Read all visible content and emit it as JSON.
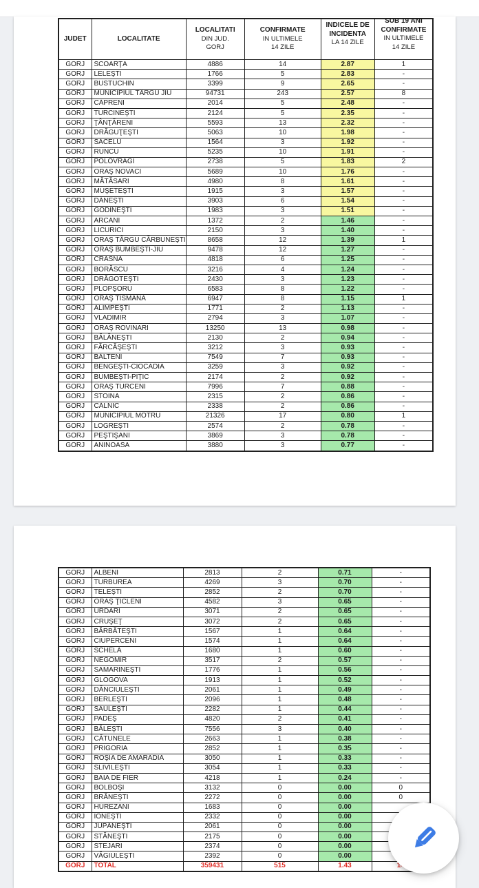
{
  "viewer": {
    "fab": {
      "icon": "pencil-edit-icon",
      "color": "#3d7ce5"
    }
  },
  "colors": {
    "band_yellow": "#f8f7a0",
    "band_green": "#a6e9ab",
    "total_red": "#e02d26",
    "viewer_background": "#eef0f3"
  },
  "table": {
    "judet_value": "GORJ",
    "columns": [
      {
        "id": "judet",
        "strong": [
          "JUDET"
        ],
        "normal": [],
        "raised": false
      },
      {
        "id": "localitate",
        "strong": [
          "LOCALITATE"
        ],
        "normal": [],
        "raised": false
      },
      {
        "id": "localitati-din-jud",
        "strong": [
          "LOCALITATI"
        ],
        "normal": [
          "DIN JUD.",
          "GORJ"
        ],
        "raised": false
      },
      {
        "id": "confirmate",
        "strong": [
          "CONFIRMATE"
        ],
        "normal": [
          "IN ULTIMELE",
          "14 ZILE"
        ],
        "raised": false
      },
      {
        "id": "incidenta",
        "strong": [
          "INDICELE DE",
          "INCIDENTA"
        ],
        "normal": [
          "LA 14 ZILE"
        ],
        "raised": true
      },
      {
        "id": "sub19",
        "strong": [
          "SUB 19 ANI",
          "CONFIRMATE"
        ],
        "normal": [
          "IN ULTIMELE",
          "14 ZILE"
        ],
        "raised": true
      }
    ],
    "row_fields": [
      "localitate",
      "localitati_din_jud",
      "confirmate_14_zile",
      "indice_incidenta_14_zile",
      "sub19_confirmate",
      "band"
    ]
  },
  "pages": [
    {
      "rows": [
        [
          "SCOARŢA",
          "4886",
          "14",
          "2.87",
          "1",
          "Y"
        ],
        [
          "LELEŞTI",
          "1766",
          "5",
          "2.83",
          "-",
          "Y"
        ],
        [
          "BUSTUCHIN",
          "3399",
          "9",
          "2.65",
          "-",
          "Y"
        ],
        [
          "MUNICIPIUL TÂRGU JIU",
          "94731",
          "243",
          "2.57",
          "8",
          "Y"
        ],
        [
          "CĂPRENI",
          "2014",
          "5",
          "2.48",
          "-",
          "Y"
        ],
        [
          "TURCINEŞTI",
          "2124",
          "5",
          "2.35",
          "-",
          "Y"
        ],
        [
          "ŢÂNŢĂRENI",
          "5593",
          "13",
          "2.32",
          "-",
          "Y"
        ],
        [
          "DRĂGUŢEŞTI",
          "5063",
          "10",
          "1.98",
          "-",
          "Y"
        ],
        [
          "SĂCELU",
          "1564",
          "3",
          "1.92",
          "-",
          "Y"
        ],
        [
          "RUNCU",
          "5235",
          "10",
          "1.91",
          "-",
          "Y"
        ],
        [
          "POLOVRAGI",
          "2738",
          "5",
          "1.83",
          "2",
          "Y"
        ],
        [
          "ORAŞ NOVACI",
          "5689",
          "10",
          "1.76",
          "-",
          "Y"
        ],
        [
          "MĂTĂSARI",
          "4980",
          "8",
          "1.61",
          "-",
          "Y"
        ],
        [
          "MUŞETEŞTI",
          "1915",
          "3",
          "1.57",
          "-",
          "Y"
        ],
        [
          "DĂNEŞTI",
          "3903",
          "6",
          "1.54",
          "-",
          "Y"
        ],
        [
          "GODINEŞTI",
          "1983",
          "3",
          "1.51",
          "-",
          "Y"
        ],
        [
          "ARCANI",
          "1372",
          "2",
          "1.46",
          "-",
          "G"
        ],
        [
          "LICURICI",
          "2150",
          "3",
          "1.40",
          "-",
          "G"
        ],
        [
          "ORAŞ TÂRGU CĂRBUNEŞTI",
          "8658",
          "12",
          "1.39",
          "1",
          "G"
        ],
        [
          "ORAŞ BUMBEŞTI-JIU",
          "9478",
          "12",
          "1.27",
          "-",
          "G"
        ],
        [
          "CRASNA",
          "4818",
          "6",
          "1.25",
          "-",
          "G"
        ],
        [
          "BORĂSCU",
          "3216",
          "4",
          "1.24",
          "-",
          "G"
        ],
        [
          "DRĂGOTEŞTI",
          "2430",
          "3",
          "1.23",
          "-",
          "G"
        ],
        [
          "PLOPŞORU",
          "6583",
          "8",
          "1.22",
          "-",
          "G"
        ],
        [
          "ORAŞ TISMANA",
          "6947",
          "8",
          "1.15",
          "1",
          "G"
        ],
        [
          "ALIMPEŞTI",
          "1771",
          "2",
          "1.13",
          "-",
          "G"
        ],
        [
          "VLADIMIR",
          "2794",
          "3",
          "1.07",
          "-",
          "G"
        ],
        [
          "ORAŞ ROVINARI",
          "13250",
          "13",
          "0.98",
          "-",
          "G"
        ],
        [
          "BĂLĂNEŞTI",
          "2130",
          "2",
          "0.94",
          "-",
          "G"
        ],
        [
          "FĂRCĂŞEŞTI",
          "3212",
          "3",
          "0.93",
          "-",
          "G"
        ],
        [
          "BĂLTENI",
          "7549",
          "7",
          "0.93",
          "-",
          "G"
        ],
        [
          "BENGEŞTI-CIOCADIA",
          "3259",
          "3",
          "0.92",
          "-",
          "G"
        ],
        [
          "BUMBEŞTI-PIŢIC",
          "2174",
          "2",
          "0.92",
          "-",
          "G"
        ],
        [
          "ORAŞ TURCENI",
          "7996",
          "7",
          "0.88",
          "-",
          "G"
        ],
        [
          "STOINA",
          "2315",
          "2",
          "0.86",
          "-",
          "G"
        ],
        [
          "CĂLNIC",
          "2338",
          "2",
          "0.86",
          "-",
          "G"
        ],
        [
          "MUNICIPIUL MOTRU",
          "21326",
          "17",
          "0.80",
          "1",
          "G"
        ],
        [
          "LOGREŞTI",
          "2574",
          "2",
          "0.78",
          "-",
          "G"
        ],
        [
          "PEŞTIŞANI",
          "3869",
          "3",
          "0.78",
          "-",
          "G"
        ],
        [
          "ANINOASA",
          "3880",
          "3",
          "0.77",
          "-",
          "G"
        ]
      ]
    },
    {
      "rows": [
        [
          "ALBENI",
          "2813",
          "2",
          "0.71",
          "-",
          "G"
        ],
        [
          "TURBUREA",
          "4269",
          "3",
          "0.70",
          "-",
          "G"
        ],
        [
          "TELEŞTI",
          "2852",
          "2",
          "0.70",
          "-",
          "G"
        ],
        [
          "ORAŞ ŢICLENI",
          "4582",
          "3",
          "0.65",
          "-",
          "G"
        ],
        [
          "URDARI",
          "3071",
          "2",
          "0.65",
          "-",
          "G"
        ],
        [
          "CRUŞEŢ",
          "3072",
          "2",
          "0.65",
          "-",
          "G"
        ],
        [
          "BĂRBĂTEŞTI",
          "1567",
          "1",
          "0.64",
          "-",
          "G"
        ],
        [
          "CIUPERCENI",
          "1574",
          "1",
          "0.64",
          "-",
          "G"
        ],
        [
          "SCHELA",
          "1680",
          "1",
          "0.60",
          "-",
          "G"
        ],
        [
          "NEGOMIR",
          "3517",
          "2",
          "0.57",
          "-",
          "G"
        ],
        [
          "SAMARINEŞTI",
          "1776",
          "1",
          "0.56",
          "-",
          "G"
        ],
        [
          "GLOGOVA",
          "1913",
          "1",
          "0.52",
          "-",
          "G"
        ],
        [
          "DĂNCIULEŞTI",
          "2061",
          "1",
          "0.49",
          "-",
          "G"
        ],
        [
          "BERLEŞTI",
          "2096",
          "1",
          "0.48",
          "-",
          "G"
        ],
        [
          "SĂULEŞTI",
          "2282",
          "1",
          "0.44",
          "-",
          "G"
        ],
        [
          "PADEŞ",
          "4820",
          "2",
          "0.41",
          "-",
          "G"
        ],
        [
          "BĂLEŞTI",
          "7556",
          "3",
          "0.40",
          "-",
          "G"
        ],
        [
          "CĂTUNELE",
          "2663",
          "1",
          "0.38",
          "-",
          "G"
        ],
        [
          "PRIGORIA",
          "2852",
          "1",
          "0.35",
          "-",
          "G"
        ],
        [
          "ROŞIA DE AMARADIA",
          "3050",
          "1",
          "0.33",
          "-",
          "G"
        ],
        [
          "SLIVILEŞTI",
          "3054",
          "1",
          "0.33",
          "-",
          "G"
        ],
        [
          "BAIA DE FIER",
          "4218",
          "1",
          "0.24",
          "-",
          "G"
        ],
        [
          "BOLBOŞI",
          "3132",
          "0",
          "0.00",
          "0",
          "G"
        ],
        [
          "BRĂNEŞTI",
          "2272",
          "0",
          "0.00",
          "0",
          "G"
        ],
        [
          "HUREZANI",
          "1683",
          "0",
          "0.00",
          "",
          "G"
        ],
        [
          "IONEŞTI",
          "2332",
          "0",
          "0.00",
          "",
          "G"
        ],
        [
          "JUPÂNEŞTI",
          "2061",
          "0",
          "0.00",
          "",
          "G"
        ],
        [
          "STĂNEŞTI",
          "2175",
          "0",
          "0.00",
          "",
          "G"
        ],
        [
          "STEJARI",
          "2374",
          "0",
          "0.00",
          "",
          "G"
        ],
        [
          "VĂGIULEŞTI",
          "2392",
          "0",
          "0.00",
          "",
          "G"
        ],
        [
          "TOTAL",
          "359431",
          "515",
          "1.43",
          "14",
          "T"
        ]
      ]
    }
  ]
}
